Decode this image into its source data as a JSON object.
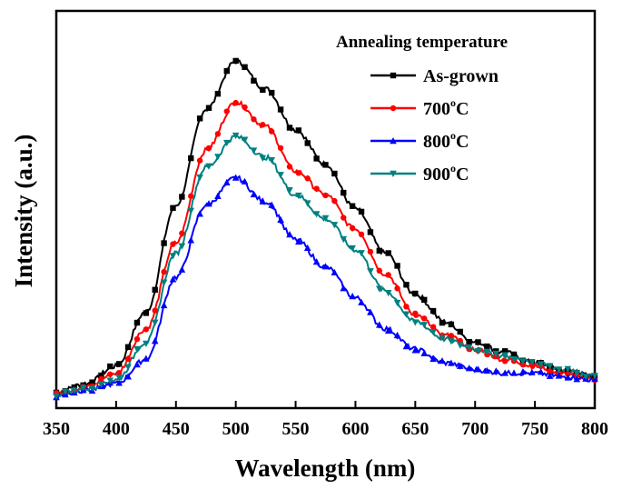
{
  "chart_data": {
    "type": "line",
    "title": "",
    "xlabel": "Wavelength (nm)",
    "ylabel": "Intensity (a.u.)",
    "xlim": [
      350,
      800
    ],
    "ylim": [
      0,
      100
    ],
    "x_ticks": [
      "350",
      "400",
      "450",
      "500",
      "550",
      "600",
      "650",
      "700",
      "750",
      "800"
    ],
    "y_ticks_shown": false,
    "grid": false,
    "legend_position": "top-right",
    "legend_title": "Annealing temperature",
    "x": [
      350,
      375,
      400,
      425,
      450,
      475,
      500,
      525,
      550,
      575,
      600,
      625,
      650,
      675,
      700,
      725,
      750,
      775,
      800
    ],
    "series": [
      {
        "name": "As-grown",
        "label_main": "As-grown",
        "label_sup": "",
        "label_tail": "",
        "color": "#000000",
        "marker": "square",
        "values": [
          1.5,
          4,
          9,
          25,
          56,
          84,
          98,
          90,
          78,
          68,
          55,
          42,
          30,
          22,
          16,
          13,
          10,
          8,
          6
        ]
      },
      {
        "name": "700oC",
        "label_main": "700",
        "label_sup": "o",
        "label_tail": "C",
        "color": "#ff0000",
        "marker": "circle",
        "values": [
          1,
          3,
          7,
          20,
          45,
          72,
          86,
          79,
          66,
          59,
          49,
          36,
          24,
          18,
          14,
          11,
          9,
          7,
          5
        ]
      },
      {
        "name": "800oC",
        "label_main": "800",
        "label_sup": "o",
        "label_tail": "C",
        "color": "#0000ff",
        "marker": "triangle-up",
        "values": [
          0.5,
          2,
          4,
          11,
          35,
          56,
          64,
          57,
          46,
          38,
          29,
          20,
          14,
          10,
          8,
          7,
          7,
          6,
          5
        ]
      },
      {
        "name": "900oC",
        "label_main": "900",
        "label_sup": "o",
        "label_tail": "C",
        "color": "#008080",
        "marker": "triangle-down",
        "values": [
          0.8,
          2.5,
          5,
          16,
          42,
          67,
          76,
          70,
          59,
          52,
          43,
          31,
          22,
          17,
          14,
          12,
          10,
          8,
          6
        ]
      }
    ]
  }
}
